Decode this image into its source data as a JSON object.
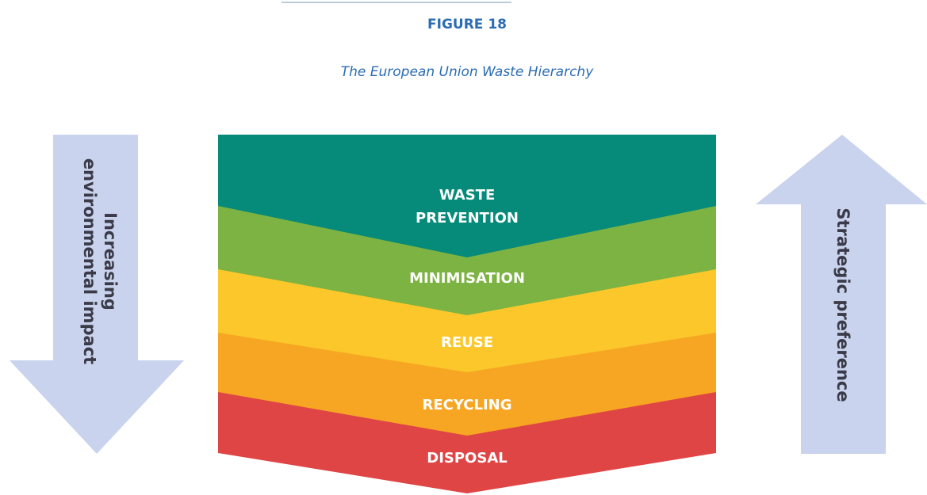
{
  "header": {
    "figure_label": "FIGURE 18",
    "title": "The European Union Waste Hierarchy"
  },
  "left_arrow": {
    "lines": [
      "Increasing",
      "environmental impact"
    ]
  },
  "right_arrow": {
    "label": "Strategic preference"
  },
  "layers": [
    {
      "lines": [
        "WASTE",
        "PREVENTION"
      ]
    },
    {
      "lines": [
        "MINIMISATION"
      ]
    },
    {
      "lines": [
        "REUSE"
      ]
    },
    {
      "lines": [
        "RECYCLING"
      ]
    },
    {
      "lines": [
        "DISPOSAL"
      ]
    }
  ]
}
